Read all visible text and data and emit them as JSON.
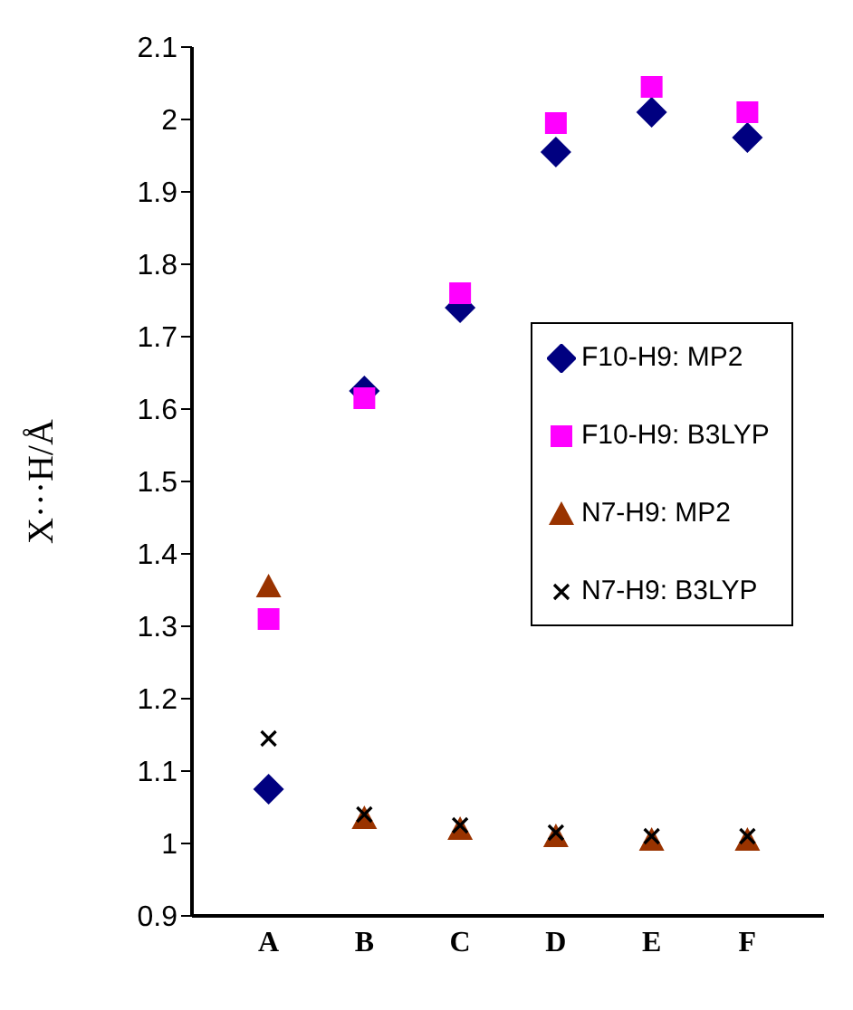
{
  "chart_data": {
    "type": "scatter",
    "ylabel": "X···H/Å",
    "categories": [
      "A",
      "B",
      "C",
      "D",
      "E",
      "F"
    ],
    "ylim": [
      0.9,
      2.1
    ],
    "yticks": [
      0.9,
      1,
      1.1,
      1.2,
      1.3,
      1.4,
      1.5,
      1.6,
      1.7,
      1.8,
      1.9,
      2,
      2.1
    ],
    "grid": false,
    "legend": "right",
    "series": [
      {
        "name": "F10-H9: MP2",
        "color": "#000080",
        "marker": "diamond",
        "values": [
          1.075,
          1.625,
          1.74,
          1.955,
          2.01,
          1.975
        ]
      },
      {
        "name": "F10-H9: B3LYP",
        "color": "#ff00ff",
        "marker": "square",
        "values": [
          1.31,
          1.615,
          1.76,
          1.995,
          2.045,
          2.01
        ]
      },
      {
        "name": "N7-H9: MP2",
        "color": "#993300",
        "marker": "triangle",
        "values": [
          1.355,
          1.035,
          1.02,
          1.01,
          1.005,
          1.005
        ]
      },
      {
        "name": "N7-H9: B3LYP",
        "color": "#000000",
        "marker": "cross",
        "values": [
          1.145,
          1.04,
          1.025,
          1.015,
          1.01,
          1.01
        ]
      }
    ]
  }
}
